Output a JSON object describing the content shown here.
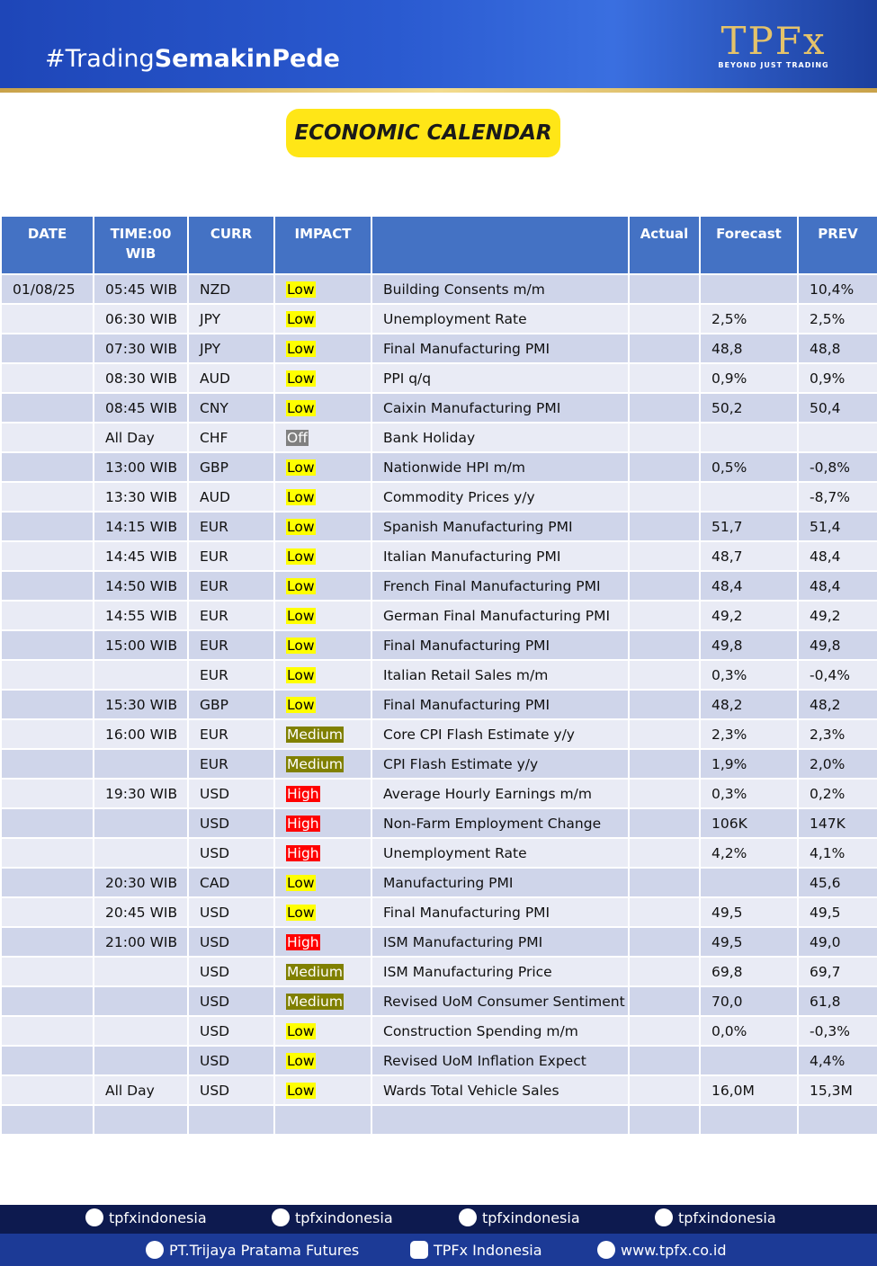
{
  "header": {
    "hashtag_prefix": "#Trading",
    "hashtag_emphasis": "SemakinPede",
    "logo": "TPFx",
    "tagline": "BEYOND JUST TRADING",
    "title": "ECONOMIC CALENDAR"
  },
  "table": {
    "columns": [
      "DATE",
      "TIME:00 WIB",
      "CURR",
      "IMPACT",
      null,
      "Actual",
      "Forecast",
      "PREV"
    ],
    "impact_styles": {
      "Low": {
        "bg": "#ffff00",
        "fg": "#000000"
      },
      "Off": {
        "bg": "#808080",
        "fg": "#ffffff"
      },
      "Medium": {
        "bg": "#808000",
        "fg": "#ffffff"
      },
      "High": {
        "bg": "#ff0000",
        "fg": "#ffffff"
      }
    },
    "rows": [
      [
        "01/08/25",
        "05:45 WIB",
        "NZD",
        "Low",
        "Building Consents m/m",
        null,
        null,
        "10,4%"
      ],
      [
        null,
        "06:30 WIB",
        "JPY",
        "Low",
        "Unemployment Rate",
        null,
        "2,5%",
        "2,5%"
      ],
      [
        null,
        "07:30 WIB",
        "JPY",
        "Low",
        "Final Manufacturing PMI",
        null,
        "48,8",
        "48,8"
      ],
      [
        null,
        "08:30 WIB",
        "AUD",
        "Low",
        "PPI q/q",
        null,
        "0,9%",
        "0,9%"
      ],
      [
        null,
        "08:45 WIB",
        "CNY",
        "Low",
        "Caixin Manufacturing PMI",
        null,
        "50,2",
        "50,4"
      ],
      [
        null,
        "All Day",
        "CHF",
        "Off",
        "Bank Holiday",
        null,
        null,
        null
      ],
      [
        null,
        "13:00 WIB",
        "GBP",
        "Low",
        "Nationwide HPI m/m",
        null,
        "0,5%",
        "-0,8%"
      ],
      [
        null,
        "13:30 WIB",
        "AUD",
        "Low",
        "Commodity Prices y/y",
        null,
        null,
        "-8,7%"
      ],
      [
        null,
        "14:15 WIB",
        "EUR",
        "Low",
        "Spanish Manufacturing PMI",
        null,
        "51,7",
        "51,4"
      ],
      [
        null,
        "14:45 WIB",
        "EUR",
        "Low",
        "Italian Manufacturing PMI",
        null,
        "48,7",
        "48,4"
      ],
      [
        null,
        "14:50 WIB",
        "EUR",
        "Low",
        "French Final Manufacturing PMI",
        null,
        "48,4",
        "48,4"
      ],
      [
        null,
        "14:55 WIB",
        "EUR",
        "Low",
        "German Final Manufacturing PMI",
        null,
        "49,2",
        "49,2"
      ],
      [
        null,
        "15:00 WIB",
        "EUR",
        "Low",
        "Final Manufacturing PMI",
        null,
        "49,8",
        "49,8"
      ],
      [
        null,
        null,
        "EUR",
        "Low",
        "Italian Retail Sales m/m",
        null,
        "0,3%",
        "-0,4%"
      ],
      [
        null,
        "15:30 WIB",
        "GBP",
        "Low",
        "Final Manufacturing PMI",
        null,
        "48,2",
        "48,2"
      ],
      [
        null,
        "16:00 WIB",
        "EUR",
        "Medium",
        "Core CPI Flash Estimate y/y",
        null,
        "2,3%",
        "2,3%"
      ],
      [
        null,
        null,
        "EUR",
        "Medium",
        "CPI Flash Estimate y/y",
        null,
        "1,9%",
        "2,0%"
      ],
      [
        null,
        "19:30 WIB",
        "USD",
        "High",
        "Average Hourly Earnings m/m",
        null,
        "0,3%",
        "0,2%"
      ],
      [
        null,
        null,
        "USD",
        "High",
        "Non-Farm Employment Change",
        null,
        "106K",
        "147K"
      ],
      [
        null,
        null,
        "USD",
        "High",
        "Unemployment Rate",
        null,
        "4,2%",
        "4,1%"
      ],
      [
        null,
        "20:30 WIB",
        "CAD",
        "Low",
        "Manufacturing PMI",
        null,
        null,
        "45,6"
      ],
      [
        null,
        "20:45 WIB",
        "USD",
        "Low",
        "Final Manufacturing PMI",
        null,
        "49,5",
        "49,5"
      ],
      [
        null,
        "21:00 WIB",
        "USD",
        "High",
        "ISM Manufacturing PMI",
        null,
        "49,5",
        "49,0"
      ],
      [
        null,
        null,
        "USD",
        "Medium",
        "ISM Manufacturing Price",
        null,
        "69,8",
        "69,7"
      ],
      [
        null,
        null,
        "USD",
        "Medium",
        "Revised UoM Consumer Sentiment",
        null,
        "70,0",
        "61,8"
      ],
      [
        null,
        null,
        "USD",
        "Low",
        "Construction Spending m/m",
        null,
        "0,0%",
        "-0,3%"
      ],
      [
        null,
        null,
        "USD",
        "Low",
        "Revised UoM Inflation Expect",
        null,
        null,
        "4,4%"
      ],
      [
        null,
        "All Day",
        "USD",
        "Low",
        "Wards Total Vehicle Sales",
        null,
        "16,0M",
        "15,3M"
      ],
      [
        null,
        null,
        null,
        null,
        null,
        null,
        null,
        null
      ]
    ]
  },
  "footer": {
    "facebook": "tpfxindonesia",
    "tiktok": "tpfxindonesia",
    "instagram": "tpfxindonesia",
    "x": "tpfxindonesia",
    "linkedin": "PT.Trijaya Pratama Futures",
    "youtube": "TPFx Indonesia",
    "website": "www.tpfx.co.id"
  }
}
